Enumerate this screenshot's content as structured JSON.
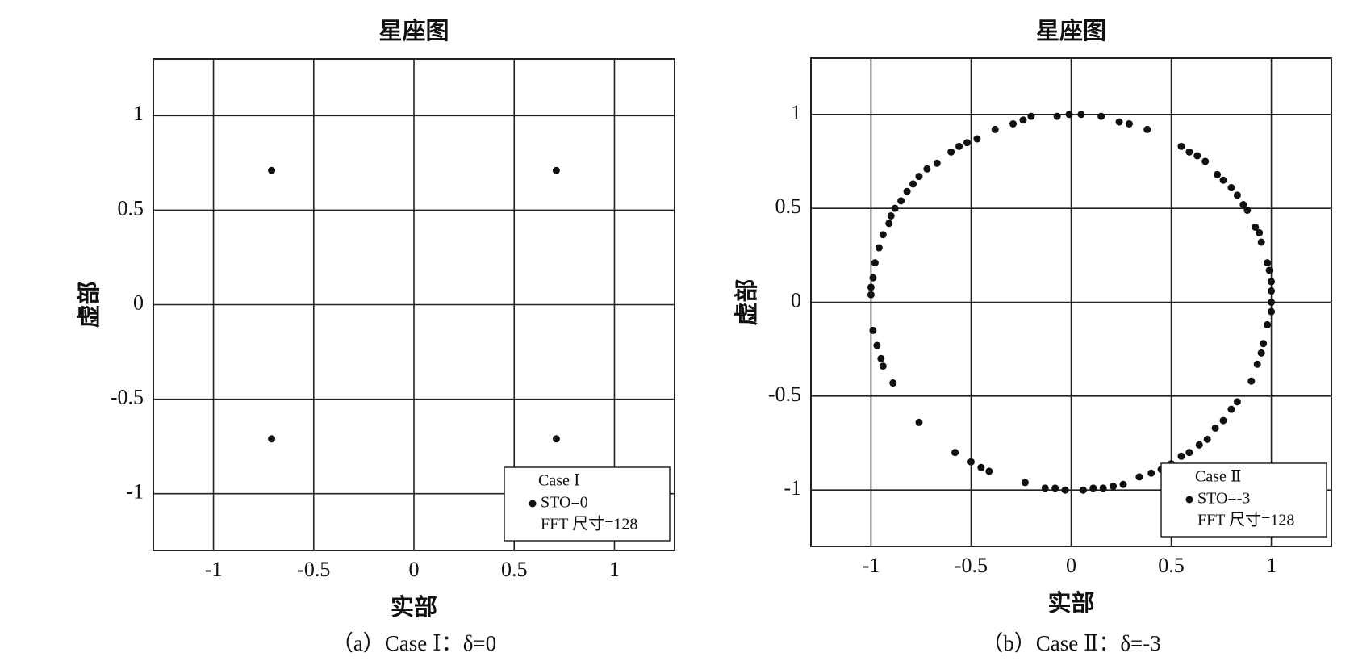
{
  "chart_data": [
    {
      "type": "scatter",
      "title": "星座图",
      "xlabel": "实部",
      "ylabel": "虚部",
      "caption": "（a）Case Ⅰ：δ=0",
      "xlim": [
        -1.3,
        1.3
      ],
      "ylim": [
        -1.3,
        1.3
      ],
      "xticks": [
        -1,
        -0.5,
        0,
        0.5,
        1
      ],
      "yticks": [
        -1,
        -0.5,
        0,
        0.5,
        1
      ],
      "grid": true,
      "legend": "lower right",
      "legend_title": "Case Ⅰ",
      "legend_note": "FFT 尺寸=128",
      "series": [
        {
          "name": "STO=0",
          "color": "#111111",
          "x": [
            -0.71,
            0.71,
            -0.71,
            0.71
          ],
          "y": [
            0.71,
            0.71,
            -0.71,
            -0.71
          ]
        }
      ]
    },
    {
      "type": "scatter",
      "title": "星座图",
      "xlabel": "实部",
      "ylabel": "虚部",
      "caption": "（b）Case Ⅱ：δ=-3",
      "xlim": [
        -1.3,
        1.3
      ],
      "ylim": [
        -1.3,
        1.3
      ],
      "xticks": [
        -1,
        -0.5,
        0,
        0.5,
        1
      ],
      "yticks": [
        -1,
        -0.5,
        0,
        0.5,
        1
      ],
      "grid": true,
      "legend": "lower right",
      "legend_title": "Case Ⅱ",
      "legend_note": "FFT 尺寸=128",
      "series": [
        {
          "name": "STO=-3",
          "color": "#111111",
          "x": [
            -0.01,
            0.05,
            0.15,
            0.24,
            0.29,
            0.38,
            -0.07,
            -0.2,
            -0.24,
            -0.29,
            -0.38,
            -0.47,
            -0.52,
            -0.56,
            -0.6,
            -0.67,
            -0.72,
            -0.76,
            -0.79,
            -0.82,
            -0.85,
            -0.88,
            -0.9,
            -0.91,
            -0.94,
            -0.96,
            -0.98,
            -0.99,
            -1.0,
            -1.0,
            -0.99,
            -0.97,
            -0.95,
            -0.94,
            -0.89,
            -0.76,
            -0.58,
            -0.5,
            -0.45,
            -0.41,
            -0.23,
            -0.13,
            -0.08,
            -0.03,
            0.06,
            0.11,
            0.16,
            0.21,
            0.26,
            0.34,
            0.4,
            0.45,
            0.5,
            0.55,
            0.59,
            0.64,
            0.68,
            0.72,
            0.76,
            0.8,
            0.83,
            0.9,
            0.93,
            0.95,
            0.96,
            0.98,
            1.0,
            1.0,
            1.0,
            1.0,
            0.99,
            0.98,
            0.95,
            0.94,
            0.92,
            0.88,
            0.86,
            0.83,
            0.8,
            0.76,
            0.73,
            0.67,
            0.63,
            0.59,
            0.55
          ],
          "y": [
            1.0,
            1.0,
            0.99,
            0.96,
            0.95,
            0.92,
            0.99,
            0.99,
            0.97,
            0.95,
            0.92,
            0.87,
            0.85,
            0.83,
            0.8,
            0.74,
            0.71,
            0.67,
            0.63,
            0.59,
            0.54,
            0.5,
            0.46,
            0.42,
            0.36,
            0.29,
            0.21,
            0.13,
            0.08,
            0.04,
            -0.15,
            -0.23,
            -0.3,
            -0.34,
            -0.43,
            -0.64,
            -0.8,
            -0.85,
            -0.88,
            -0.9,
            -0.96,
            -0.99,
            -0.99,
            -1.0,
            -1.0,
            -0.99,
            -0.99,
            -0.98,
            -0.97,
            -0.93,
            -0.91,
            -0.89,
            -0.86,
            -0.82,
            -0.8,
            -0.76,
            -0.73,
            -0.67,
            -0.63,
            -0.57,
            -0.53,
            -0.42,
            -0.33,
            -0.27,
            -0.22,
            -0.12,
            -0.05,
            0.0,
            0.06,
            0.11,
            0.17,
            0.21,
            0.32,
            0.37,
            0.4,
            0.49,
            0.52,
            0.57,
            0.61,
            0.65,
            0.68,
            0.75,
            0.78,
            0.8,
            0.83
          ]
        }
      ]
    }
  ]
}
